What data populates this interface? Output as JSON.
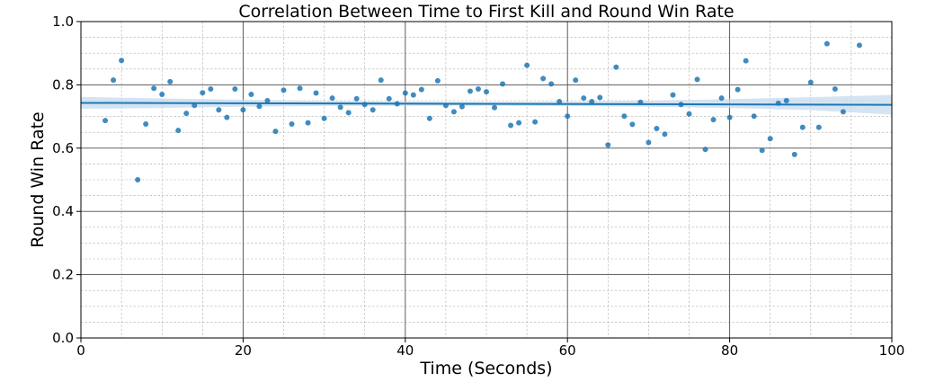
{
  "chart_data": {
    "type": "scatter",
    "title": "Correlation Between Time to First Kill and Round Win Rate",
    "xlabel": "Time (Seconds)",
    "ylabel": "Round Win Rate",
    "xlim": [
      0,
      100
    ],
    "ylim": [
      0.0,
      1.0
    ],
    "xticks": [
      "0",
      "20",
      "40",
      "60",
      "80",
      "100"
    ],
    "yticks": [
      "0.0",
      "0.2",
      "0.4",
      "0.6",
      "0.8",
      "1.0"
    ],
    "grid": "major and minor",
    "colors": {
      "points": "#1f77b4",
      "trend_line": "#1f77b4",
      "confidence_band": "#c6dbef"
    },
    "points": [
      [
        3,
        0.687
      ],
      [
        4,
        0.815
      ],
      [
        5,
        0.877
      ],
      [
        7,
        0.5
      ],
      [
        8,
        0.676
      ],
      [
        9,
        0.789
      ],
      [
        10,
        0.77
      ],
      [
        11,
        0.81
      ],
      [
        12,
        0.656
      ],
      [
        13,
        0.71
      ],
      [
        14,
        0.735
      ],
      [
        15,
        0.775
      ],
      [
        16,
        0.787
      ],
      [
        17,
        0.721
      ],
      [
        18,
        0.697
      ],
      [
        19,
        0.787
      ],
      [
        20,
        0.721
      ],
      [
        21,
        0.77
      ],
      [
        22,
        0.732
      ],
      [
        23,
        0.75
      ],
      [
        24,
        0.653
      ],
      [
        25,
        0.783
      ],
      [
        26,
        0.676
      ],
      [
        27,
        0.789
      ],
      [
        28,
        0.68
      ],
      [
        29,
        0.774
      ],
      [
        30,
        0.694
      ],
      [
        31,
        0.758
      ],
      [
        32,
        0.729
      ],
      [
        33,
        0.712
      ],
      [
        34,
        0.756
      ],
      [
        35,
        0.738
      ],
      [
        36,
        0.721
      ],
      [
        37,
        0.815
      ],
      [
        38,
        0.756
      ],
      [
        39,
        0.74
      ],
      [
        40,
        0.774
      ],
      [
        41,
        0.768
      ],
      [
        42,
        0.785
      ],
      [
        43,
        0.694
      ],
      [
        44,
        0.813
      ],
      [
        45,
        0.735
      ],
      [
        46,
        0.715
      ],
      [
        47,
        0.731
      ],
      [
        48,
        0.78
      ],
      [
        49,
        0.787
      ],
      [
        50,
        0.778
      ],
      [
        51,
        0.728
      ],
      [
        52,
        0.803
      ],
      [
        53,
        0.672
      ],
      [
        54,
        0.68
      ],
      [
        55,
        0.862
      ],
      [
        56,
        0.683
      ],
      [
        57,
        0.82
      ],
      [
        58,
        0.803
      ],
      [
        59,
        0.747
      ],
      [
        60,
        0.701
      ],
      [
        61,
        0.815
      ],
      [
        62,
        0.758
      ],
      [
        63,
        0.747
      ],
      [
        64,
        0.76
      ],
      [
        65,
        0.61
      ],
      [
        66,
        0.856
      ],
      [
        67,
        0.701
      ],
      [
        68,
        0.675
      ],
      [
        69,
        0.745
      ],
      [
        70,
        0.618
      ],
      [
        71,
        0.662
      ],
      [
        72,
        0.644
      ],
      [
        73,
        0.768
      ],
      [
        74,
        0.738
      ],
      [
        75,
        0.708
      ],
      [
        76,
        0.817
      ],
      [
        77,
        0.596
      ],
      [
        78,
        0.69
      ],
      [
        79,
        0.758
      ],
      [
        80,
        0.697
      ],
      [
        81,
        0.785
      ],
      [
        82,
        0.876
      ],
      [
        83,
        0.701
      ],
      [
        84,
        0.593
      ],
      [
        85,
        0.63
      ],
      [
        86,
        0.742
      ],
      [
        87,
        0.75
      ],
      [
        88,
        0.58
      ],
      [
        89,
        0.666
      ],
      [
        90,
        0.808
      ],
      [
        91,
        0.666
      ],
      [
        92,
        0.93
      ],
      [
        93,
        0.787
      ],
      [
        94,
        0.715
      ],
      [
        96,
        0.925
      ]
    ],
    "trend_line": {
      "x": [
        0,
        100
      ],
      "y": [
        0.743,
        0.737
      ]
    },
    "confidence_band": {
      "x": [
        0,
        10,
        20,
        30,
        40,
        50,
        60,
        70,
        80,
        90,
        100
      ],
      "upper": [
        0.762,
        0.757,
        0.753,
        0.749,
        0.747,
        0.746,
        0.747,
        0.75,
        0.755,
        0.761,
        0.768
      ],
      "lower": [
        0.724,
        0.727,
        0.731,
        0.733,
        0.734,
        0.734,
        0.733,
        0.731,
        0.727,
        0.72,
        0.706
      ]
    }
  }
}
